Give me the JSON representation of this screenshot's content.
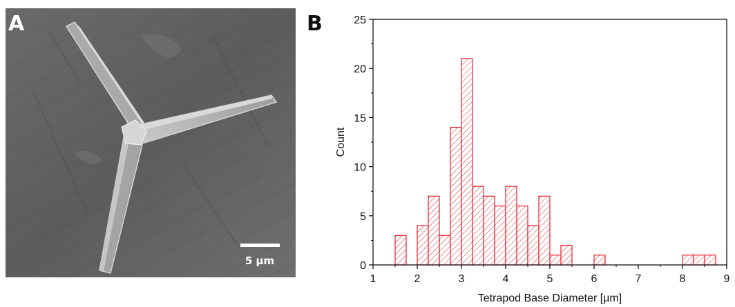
{
  "panels": {
    "a": {
      "letter": "A",
      "scale_bar": "5 µm"
    },
    "b": {
      "letter": "B"
    }
  },
  "chart_data": {
    "type": "bar",
    "title": "",
    "xlabel": "Tetrapod Base Diameter [µm]",
    "ylabel": "Count",
    "xlim": [
      1,
      9
    ],
    "ylim": [
      0,
      25
    ],
    "x_ticks": [
      1,
      2,
      3,
      4,
      5,
      6,
      7,
      8,
      9
    ],
    "y_ticks": [
      0,
      5,
      10,
      15,
      20,
      25
    ],
    "bin_width": 0.25,
    "bins": [
      {
        "start": 1.5,
        "count": 3
      },
      {
        "start": 2.0,
        "count": 4
      },
      {
        "start": 2.25,
        "count": 7
      },
      {
        "start": 2.5,
        "count": 3
      },
      {
        "start": 2.75,
        "count": 14
      },
      {
        "start": 3.0,
        "count": 21
      },
      {
        "start": 3.25,
        "count": 8
      },
      {
        "start": 3.5,
        "count": 7
      },
      {
        "start": 3.75,
        "count": 6
      },
      {
        "start": 4.0,
        "count": 8
      },
      {
        "start": 4.25,
        "count": 6
      },
      {
        "start": 4.5,
        "count": 4
      },
      {
        "start": 4.75,
        "count": 7
      },
      {
        "start": 5.0,
        "count": 1
      },
      {
        "start": 5.25,
        "count": 2
      },
      {
        "start": 6.0,
        "count": 1
      },
      {
        "start": 8.0,
        "count": 1
      },
      {
        "start": 8.25,
        "count": 1
      },
      {
        "start": 8.5,
        "count": 1
      }
    ],
    "grid": false,
    "bar_color": "#e8202a",
    "bar_fill": "diagonal-hatch"
  }
}
